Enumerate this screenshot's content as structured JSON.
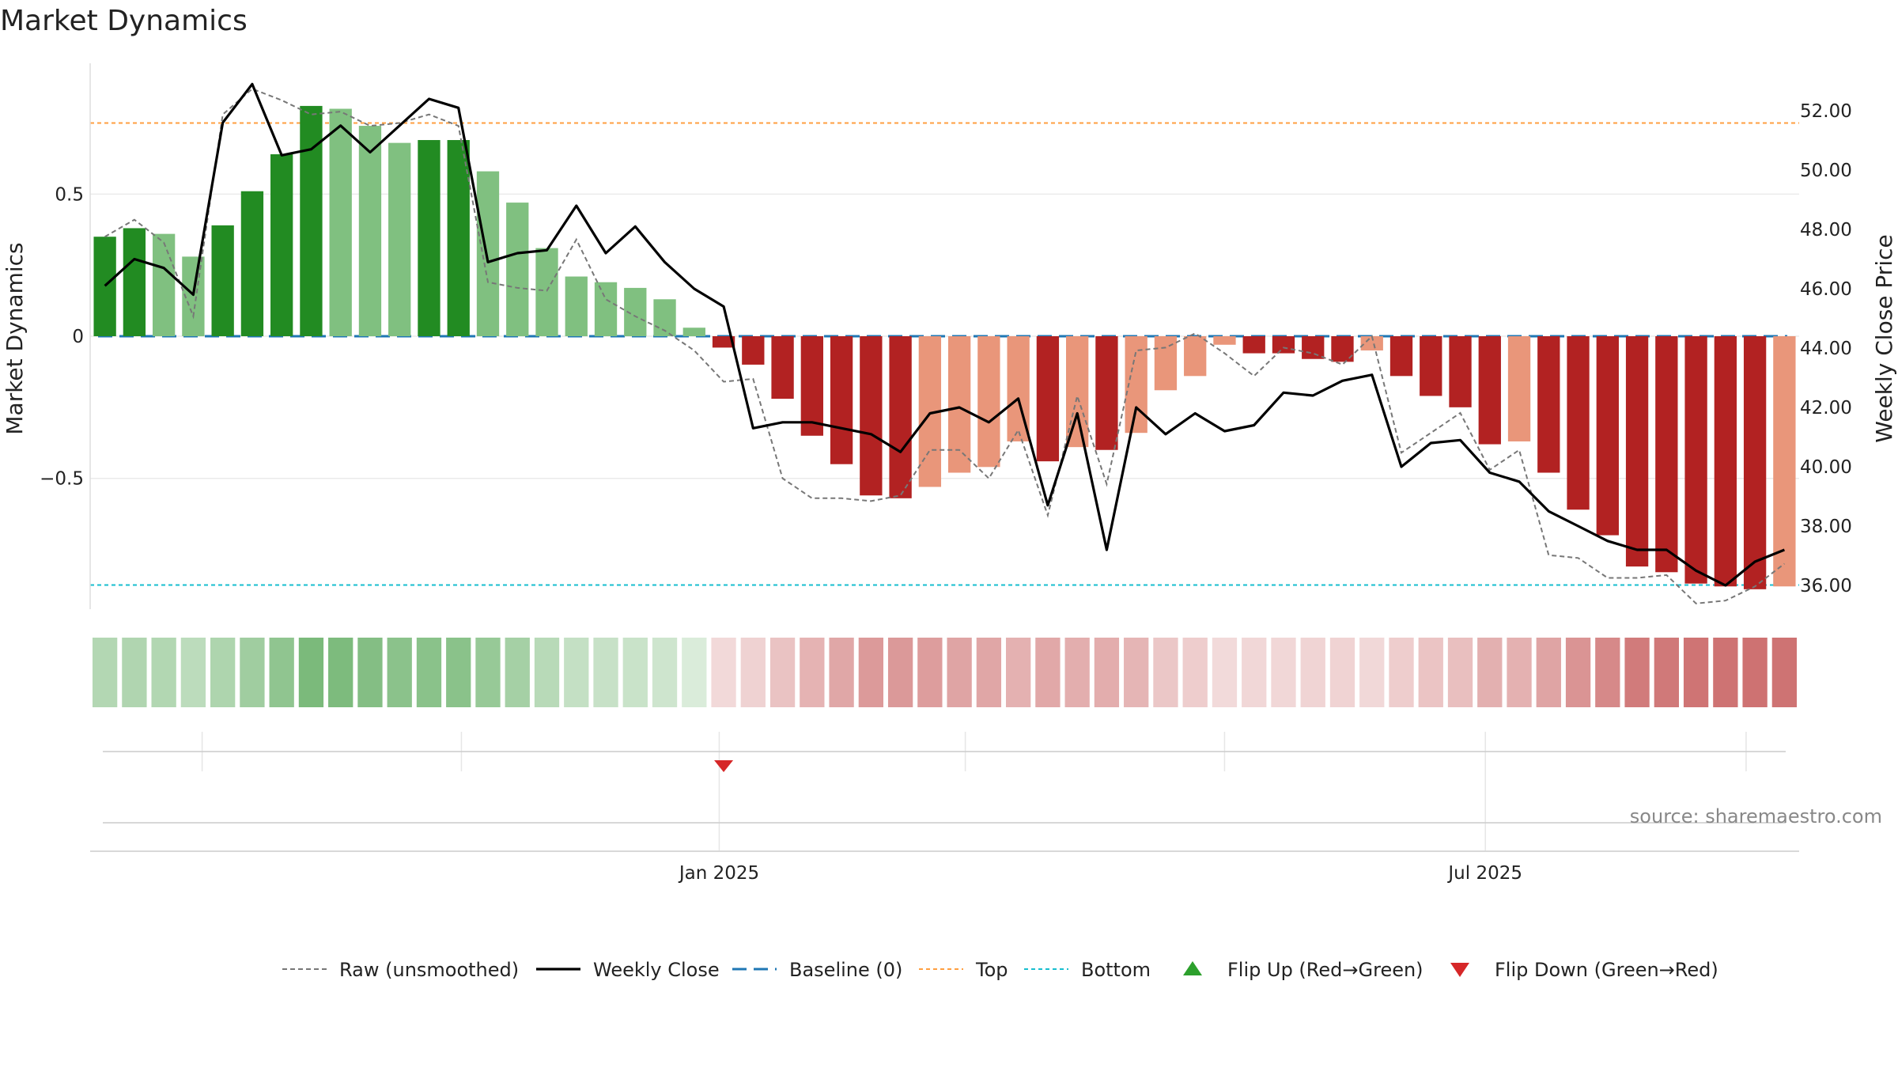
{
  "chart_data": {
    "type": "bar",
    "title": "Market Dynamics",
    "ylabel": "Market Dynamics",
    "y2label": "Weekly Close Price",
    "ylim": [
      -0.96,
      0.96
    ],
    "y2lim": [
      35.2,
      53.6
    ],
    "yticks": [
      {
        "v": 0.5,
        "label": "0.5"
      },
      {
        "v": 0,
        "label": "0"
      },
      {
        "v": -0.5,
        "label": "−0.5"
      }
    ],
    "y2ticks": [
      {
        "v": 36,
        "label": "36.00"
      },
      {
        "v": 38,
        "label": "38.00"
      },
      {
        "v": 40,
        "label": "40.00"
      },
      {
        "v": 42,
        "label": "42.00"
      },
      {
        "v": 44,
        "label": "44.00"
      },
      {
        "v": 46,
        "label": "46.00"
      },
      {
        "v": 48,
        "label": "48.00"
      },
      {
        "v": 50,
        "label": "50.00"
      },
      {
        "v": 52,
        "label": "52.00"
      }
    ],
    "xticks": [
      {
        "index": 20.85,
        "label": "Jan 2025"
      },
      {
        "index": 46.85,
        "label": "Jul 2025"
      }
    ],
    "extra_grid_index": [
      3.3,
      12.1,
      29.2,
      38.0,
      55.7
    ],
    "top_level": 0.75,
    "bottom_level": -0.875,
    "baseline": 0,
    "dynamics": [
      0.35,
      0.38,
      0.36,
      0.28,
      0.39,
      0.51,
      0.64,
      0.81,
      0.8,
      0.74,
      0.68,
      0.69,
      0.69,
      0.58,
      0.47,
      0.31,
      0.21,
      0.19,
      0.17,
      0.13,
      0.03,
      -0.04,
      -0.1,
      -0.22,
      -0.35,
      -0.45,
      -0.56,
      -0.57,
      -0.53,
      -0.48,
      -0.46,
      -0.37,
      -0.44,
      -0.39,
      -0.4,
      -0.34,
      -0.19,
      -0.14,
      -0.03,
      -0.06,
      -0.06,
      -0.08,
      -0.09,
      -0.05,
      -0.14,
      -0.21,
      -0.25,
      -0.38,
      -0.37,
      -0.48,
      -0.61,
      -0.7,
      -0.81,
      -0.83,
      -0.87,
      -0.88,
      -0.89,
      -0.88
    ],
    "bar_shade": [
      "dark",
      "dark",
      "light",
      "light",
      "dark",
      "dark",
      "dark",
      "dark",
      "light",
      "light",
      "light",
      "dark",
      "dark",
      "light",
      "light",
      "light",
      "light",
      "light",
      "light",
      "light",
      "light",
      "dark",
      "dark",
      "dark",
      "dark",
      "dark",
      "dark",
      "dark",
      "light",
      "light",
      "light",
      "light",
      "dark",
      "light",
      "dark",
      "light",
      "light",
      "light",
      "light",
      "dark",
      "dark",
      "dark",
      "dark",
      "light",
      "dark",
      "dark",
      "dark",
      "dark",
      "light",
      "dark",
      "dark",
      "dark",
      "dark",
      "dark",
      "dark",
      "dark",
      "dark",
      "light"
    ],
    "raw": [
      0.35,
      0.41,
      0.33,
      0.07,
      0.78,
      0.87,
      0.83,
      0.78,
      0.79,
      0.74,
      0.75,
      0.78,
      0.74,
      0.19,
      0.17,
      0.16,
      0.34,
      0.13,
      0.07,
      0.02,
      -0.05,
      -0.16,
      -0.15,
      -0.5,
      -0.57,
      -0.57,
      -0.58,
      -0.56,
      -0.4,
      -0.4,
      -0.5,
      -0.33,
      -0.63,
      -0.21,
      -0.52,
      -0.05,
      -0.04,
      0.01,
      -0.06,
      -0.14,
      -0.04,
      -0.06,
      -0.1,
      0.0,
      -0.41,
      -0.34,
      -0.27,
      -0.47,
      -0.4,
      -0.77,
      -0.78,
      -0.85,
      -0.85,
      -0.84,
      -0.94,
      -0.93,
      -0.88,
      -0.8
    ],
    "weekly_close": [
      46.1,
      47.0,
      46.7,
      45.8,
      51.6,
      52.9,
      50.5,
      50.7,
      51.5,
      50.6,
      51.5,
      52.4,
      52.1,
      46.9,
      47.2,
      47.3,
      48.8,
      47.2,
      48.1,
      46.9,
      46.0,
      45.4,
      41.3,
      41.5,
      41.5,
      41.3,
      41.1,
      40.5,
      41.8,
      42.0,
      41.5,
      42.3,
      38.7,
      41.8,
      37.2,
      42.0,
      41.1,
      41.8,
      41.2,
      41.4,
      42.5,
      42.4,
      42.9,
      43.1,
      40.0,
      40.8,
      40.9,
      39.8,
      39.5,
      38.5,
      38.0,
      37.5,
      37.2,
      37.2,
      36.5,
      36.0,
      36.8,
      37.2
    ],
    "series": [
      {
        "name": "Raw (unsmoothed)"
      },
      {
        "name": "Weekly Close"
      },
      {
        "name": "Baseline (0)"
      },
      {
        "name": "Top"
      },
      {
        "name": "Bottom"
      },
      {
        "name": "Flip Up (Red→Green)"
      },
      {
        "name": "Flip Down (Green→Red)"
      }
    ],
    "flip_down_index": [
      21
    ],
    "flip_up_index": [],
    "legend_position": "bottom",
    "colors": {
      "pos_dark": "#228b22",
      "pos_light": "#80c080",
      "neg_dark": "#b22222",
      "neg_light": "#e9967a",
      "raw": "#777777",
      "close": "#000000",
      "baseline": "#1f77b4",
      "top": "#ff9f40",
      "bottom": "#17becf",
      "flip_up": "#2ca02c",
      "flip_down": "#d62728"
    }
  },
  "source_label": "source: sharemaestro.com"
}
